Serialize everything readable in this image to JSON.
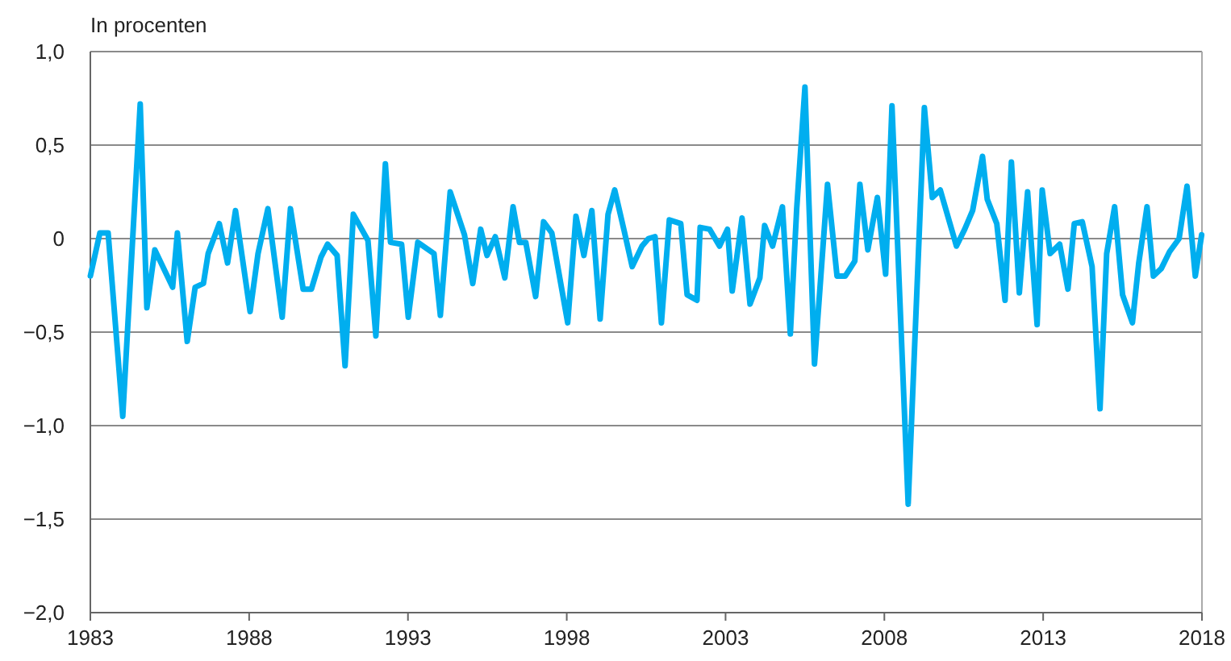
{
  "chart_data": {
    "type": "line",
    "ylabel": "In procenten",
    "xlim": [
      1983,
      2018
    ],
    "xticks": [
      1983,
      1988,
      1993,
      1998,
      2003,
      2008,
      2013,
      2018
    ],
    "ylim": [
      -2,
      1
    ],
    "yticks": [
      {
        "value": 1,
        "label": "1,0"
      },
      {
        "value": 0.5,
        "label": "0,5"
      },
      0,
      {
        "value": -0.5,
        "label": "−0,5"
      },
      {
        "value": -1,
        "label": "−1,0"
      },
      {
        "value": -1.5,
        "label": "−1,5"
      },
      {
        "value": -2,
        "label": "−2,0"
      }
    ],
    "grid": "y",
    "marker": "none",
    "line_style": "solid",
    "series": [
      {
        "color": "#00aeef",
        "x": [
          1983.0,
          1983.3,
          1983.56,
          1984.02,
          1984.57,
          1984.78,
          1985.03,
          1985.59,
          1985.74,
          1986.05,
          1986.3,
          1986.56,
          1986.71,
          1987.06,
          1987.32,
          1987.57,
          1988.03,
          1988.28,
          1988.59,
          1989.04,
          1989.3,
          1989.7,
          1989.96,
          1990.26,
          1990.47,
          1990.77,
          1991.02,
          1991.28,
          1991.74,
          1991.99,
          1992.29,
          1992.45,
          1992.8,
          1993.01,
          1993.31,
          1993.82,
          1994.02,
          1994.33,
          1994.78,
          1995.04,
          1995.29,
          1995.49,
          1995.75,
          1996.05,
          1996.31,
          1996.51,
          1996.71,
          1997.02,
          1997.27,
          1997.53,
          1998.03,
          1998.29,
          1998.54,
          1998.79,
          1999.05,
          1999.3,
          1999.51,
          1999.81,
          2000.06,
          2000.37,
          2000.57,
          2000.78,
          2000.98,
          2001.23,
          2001.59,
          2001.79,
          2002.1,
          2002.2,
          2002.5,
          2002.81,
          2003.06,
          2003.21,
          2003.52,
          2003.77,
          2004.08,
          2004.23,
          2004.48,
          2004.79,
          2005.04,
          2005.24,
          2005.5,
          2005.8,
          2006.21,
          2006.51,
          2006.77,
          2007.07,
          2007.23,
          2007.48,
          2007.78,
          2008.04,
          2008.24,
          2008.75,
          2009.26,
          2009.51,
          2009.76,
          2010.27,
          2010.53,
          2010.78,
          2011.09,
          2011.24,
          2011.54,
          2011.8,
          2012.0,
          2012.25,
          2012.51,
          2012.81,
          2012.97,
          2013.22,
          2013.52,
          2013.78,
          2013.98,
          2014.23,
          2014.54,
          2014.79,
          2015.0,
          2015.25,
          2015.5,
          2015.81,
          2016.01,
          2016.27,
          2016.47,
          2016.72,
          2016.98,
          2017.28,
          2017.53,
          2017.79,
          2017.99
        ],
        "values": [
          -0.2,
          0.03,
          0.03,
          -0.95,
          0.72,
          -0.37,
          -0.06,
          -0.26,
          0.03,
          -0.55,
          -0.26,
          -0.24,
          -0.08,
          0.08,
          -0.13,
          0.15,
          -0.39,
          -0.08,
          0.16,
          -0.42,
          0.16,
          -0.27,
          -0.27,
          -0.1,
          -0.03,
          -0.09,
          -0.68,
          0.13,
          -0.01,
          -0.52,
          0.4,
          -0.02,
          -0.03,
          -0.42,
          -0.02,
          -0.08,
          -0.41,
          0.25,
          0.02,
          -0.24,
          0.05,
          -0.09,
          0.01,
          -0.21,
          0.17,
          -0.02,
          -0.02,
          -0.31,
          0.09,
          0.03,
          -0.45,
          0.12,
          -0.09,
          0.15,
          -0.43,
          0.13,
          0.26,
          0.04,
          -0.15,
          -0.04,
          0,
          0.01,
          -0.45,
          0.1,
          0.08,
          -0.3,
          -0.33,
          0.06,
          0.05,
          -0.04,
          0.05,
          -0.28,
          0.11,
          -0.35,
          -0.21,
          0.07,
          -0.04,
          0.17,
          -0.51,
          0.16,
          0.81,
          -0.67,
          0.29,
          -0.2,
          -0.2,
          -0.12,
          0.29,
          -0.06,
          0.22,
          -0.19,
          0.71,
          -1.42,
          0.7,
          0.22,
          0.26,
          -0.04,
          0.05,
          0.15,
          0.44,
          0.21,
          0.08,
          -0.33,
          0.41,
          -0.29,
          0.25,
          -0.46,
          0.26,
          -0.08,
          -0.03,
          -0.27,
          0.08,
          0.09,
          -0.15,
          -0.91,
          -0.08,
          0.17,
          -0.3,
          -0.45,
          -0.13,
          0.17,
          -0.2,
          -0.16,
          -0.07,
          0,
          0.28,
          -0.2,
          0.02
        ]
      }
    ]
  }
}
